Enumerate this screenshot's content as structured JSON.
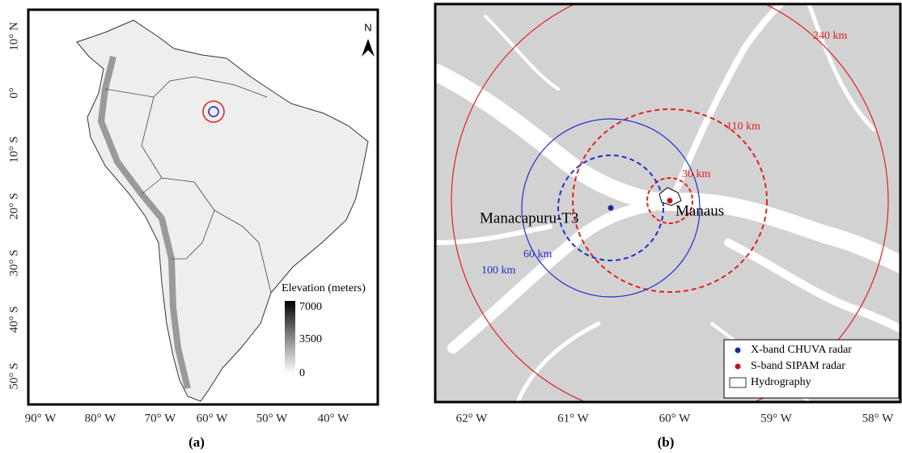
{
  "panel_a": {
    "caption": "(a)",
    "north": "N",
    "lat_labels": [
      "10° N",
      "0°",
      "10° S",
      "20° S",
      "30° S",
      "40° S",
      "50° S"
    ],
    "lon_labels": [
      "90° W",
      "80° W",
      "70° W",
      "60° W",
      "50° W",
      "40° W"
    ],
    "legend": {
      "title": "Elevation (meters)",
      "labels": [
        "7000",
        "3500",
        "0"
      ]
    }
  },
  "panel_b": {
    "caption": "(b)",
    "lon_labels": [
      "62° W",
      "61° W",
      "60° W",
      "59° W",
      "58° W"
    ],
    "rings": [
      "240 km",
      "110 km",
      "30 km",
      "60 km",
      "100 km"
    ],
    "sites": [
      "Manacapuru-T3",
      "Manaus"
    ],
    "legend": [
      "X-band CHUVA radar",
      "S-band SIPAM radar",
      "Hydrography"
    ]
  }
}
